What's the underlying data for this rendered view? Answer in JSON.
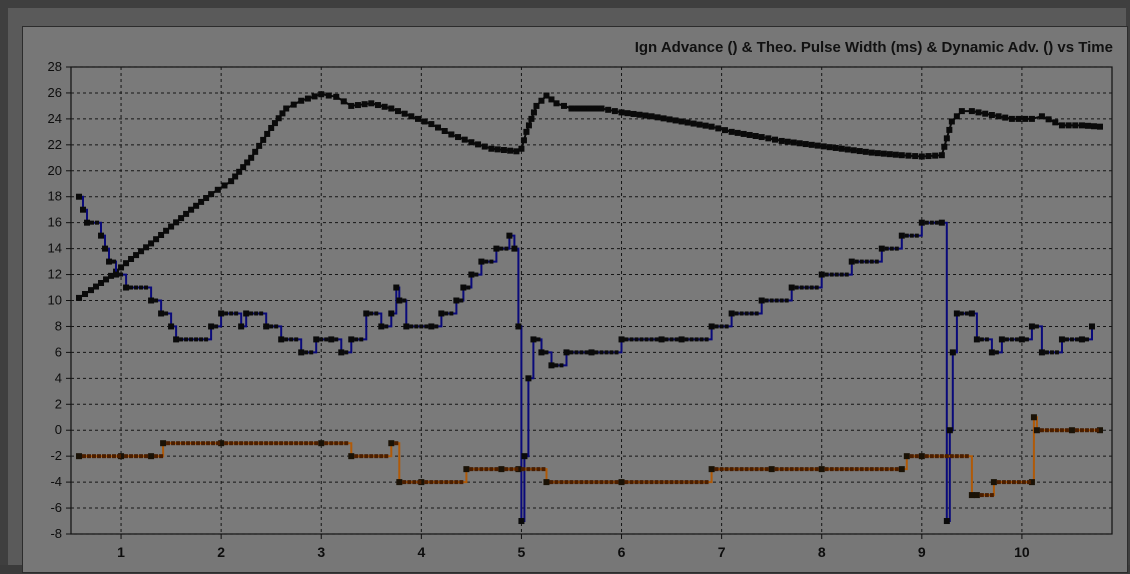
{
  "chart_data": {
    "type": "line",
    "title": "Ign Advance () & Theo. Pulse Width (ms) & Dynamic Adv. () vs Time",
    "xlabel": "",
    "ylabel": "",
    "xlim": [
      0.5,
      10.9
    ],
    "ylim": [
      -8,
      28
    ],
    "x_ticks": [
      1,
      2,
      3,
      4,
      5,
      6,
      7,
      8,
      9,
      10
    ],
    "y_ticks": [
      -8,
      -6,
      -4,
      -2,
      0,
      2,
      4,
      6,
      8,
      10,
      12,
      14,
      16,
      18,
      20,
      22,
      24,
      26,
      28
    ],
    "grid": true,
    "legend": "none",
    "series": [
      {
        "color": "#0a0a0a",
        "step": false,
        "x": [
          0.58,
          0.7,
          0.9,
          1.1,
          1.3,
          1.5,
          1.7,
          1.9,
          2.1,
          2.3,
          2.5,
          2.65,
          2.8,
          3.0,
          3.15,
          3.3,
          3.5,
          3.7,
          3.9,
          4.1,
          4.3,
          4.5,
          4.7,
          4.95,
          5.0,
          5.05,
          5.15,
          5.25,
          5.35,
          5.5,
          5.8,
          6.0,
          6.3,
          6.6,
          6.9,
          7.1,
          7.4,
          7.6,
          7.9,
          8.2,
          8.5,
          8.8,
          9.0,
          9.2,
          9.25,
          9.3,
          9.4,
          9.5,
          9.7,
          9.9,
          10.1,
          10.2,
          10.4,
          10.6,
          10.78
        ],
        "values": [
          10.2,
          10.8,
          11.9,
          13.2,
          14.4,
          15.7,
          17.0,
          18.2,
          19.2,
          21.0,
          23.3,
          24.8,
          25.4,
          25.9,
          25.7,
          25.0,
          25.2,
          24.8,
          24.2,
          23.6,
          22.8,
          22.2,
          21.7,
          21.5,
          21.7,
          23.0,
          25.0,
          25.8,
          25.2,
          24.8,
          24.8,
          24.5,
          24.2,
          23.8,
          23.4,
          23.0,
          22.6,
          22.3,
          22.0,
          21.7,
          21.4,
          21.2,
          21.1,
          21.2,
          22.5,
          23.8,
          24.6,
          24.6,
          24.3,
          24.0,
          24.0,
          24.2,
          23.5,
          23.5,
          23.4
        ]
      },
      {
        "color": "#0a0a7a",
        "step": true,
        "x": [
          0.58,
          0.62,
          0.66,
          0.8,
          0.84,
          0.88,
          0.95,
          1.05,
          1.3,
          1.4,
          1.5,
          1.55,
          1.9,
          2.0,
          2.2,
          2.25,
          2.45,
          2.6,
          2.8,
          2.95,
          3.1,
          3.2,
          3.3,
          3.45,
          3.6,
          3.7,
          3.75,
          3.78,
          3.85,
          4.1,
          4.2,
          4.35,
          4.42,
          4.5,
          4.6,
          4.75,
          4.88,
          4.93,
          4.97,
          5.0,
          5.03,
          5.07,
          5.12,
          5.2,
          5.3,
          5.45,
          5.7,
          6.0,
          6.4,
          6.6,
          6.9,
          7.1,
          7.4,
          7.7,
          8.0,
          8.3,
          8.6,
          8.8,
          9.0,
          9.2,
          9.25,
          9.28,
          9.31,
          9.35,
          9.5,
          9.55,
          9.7,
          9.8,
          10.0,
          10.1,
          10.2,
          10.4,
          10.6,
          10.7
        ],
        "values": [
          18,
          17,
          16,
          15,
          14,
          13,
          12,
          11,
          10,
          9,
          8,
          7,
          8,
          9,
          8,
          9,
          8,
          7,
          6,
          7,
          7,
          6,
          7,
          9,
          8,
          9,
          11,
          10,
          8,
          8,
          9,
          10,
          11,
          12,
          13,
          14,
          15,
          14,
          8,
          -7,
          -2,
          4,
          7,
          6,
          5,
          6,
          6,
          7,
          7,
          7,
          8,
          9,
          10,
          11,
          12,
          13,
          14,
          15,
          16,
          16,
          -7,
          0,
          6,
          9,
          9,
          7,
          6,
          7,
          7,
          8,
          6,
          7,
          7,
          8
        ]
      },
      {
        "color": "#b05a08",
        "step": true,
        "x": [
          0.58,
          1.0,
          1.3,
          1.42,
          2.0,
          3.0,
          3.3,
          3.7,
          3.78,
          4.0,
          4.45,
          4.8,
          4.97,
          5.25,
          6.0,
          6.9,
          7.5,
          8.0,
          8.8,
          8.85,
          9.0,
          9.5,
          9.55,
          9.72,
          10.1,
          10.12,
          10.15,
          10.5,
          10.78
        ],
        "values": [
          -2,
          -2,
          -2,
          -1,
          -1,
          -1,
          -2,
          -1,
          -4,
          -4,
          -3,
          -3,
          -3,
          -4,
          -4,
          -3,
          -3,
          -3,
          -3,
          -2,
          -2,
          -5,
          -5,
          -4,
          -4,
          1,
          0,
          0,
          0
        ]
      }
    ]
  }
}
